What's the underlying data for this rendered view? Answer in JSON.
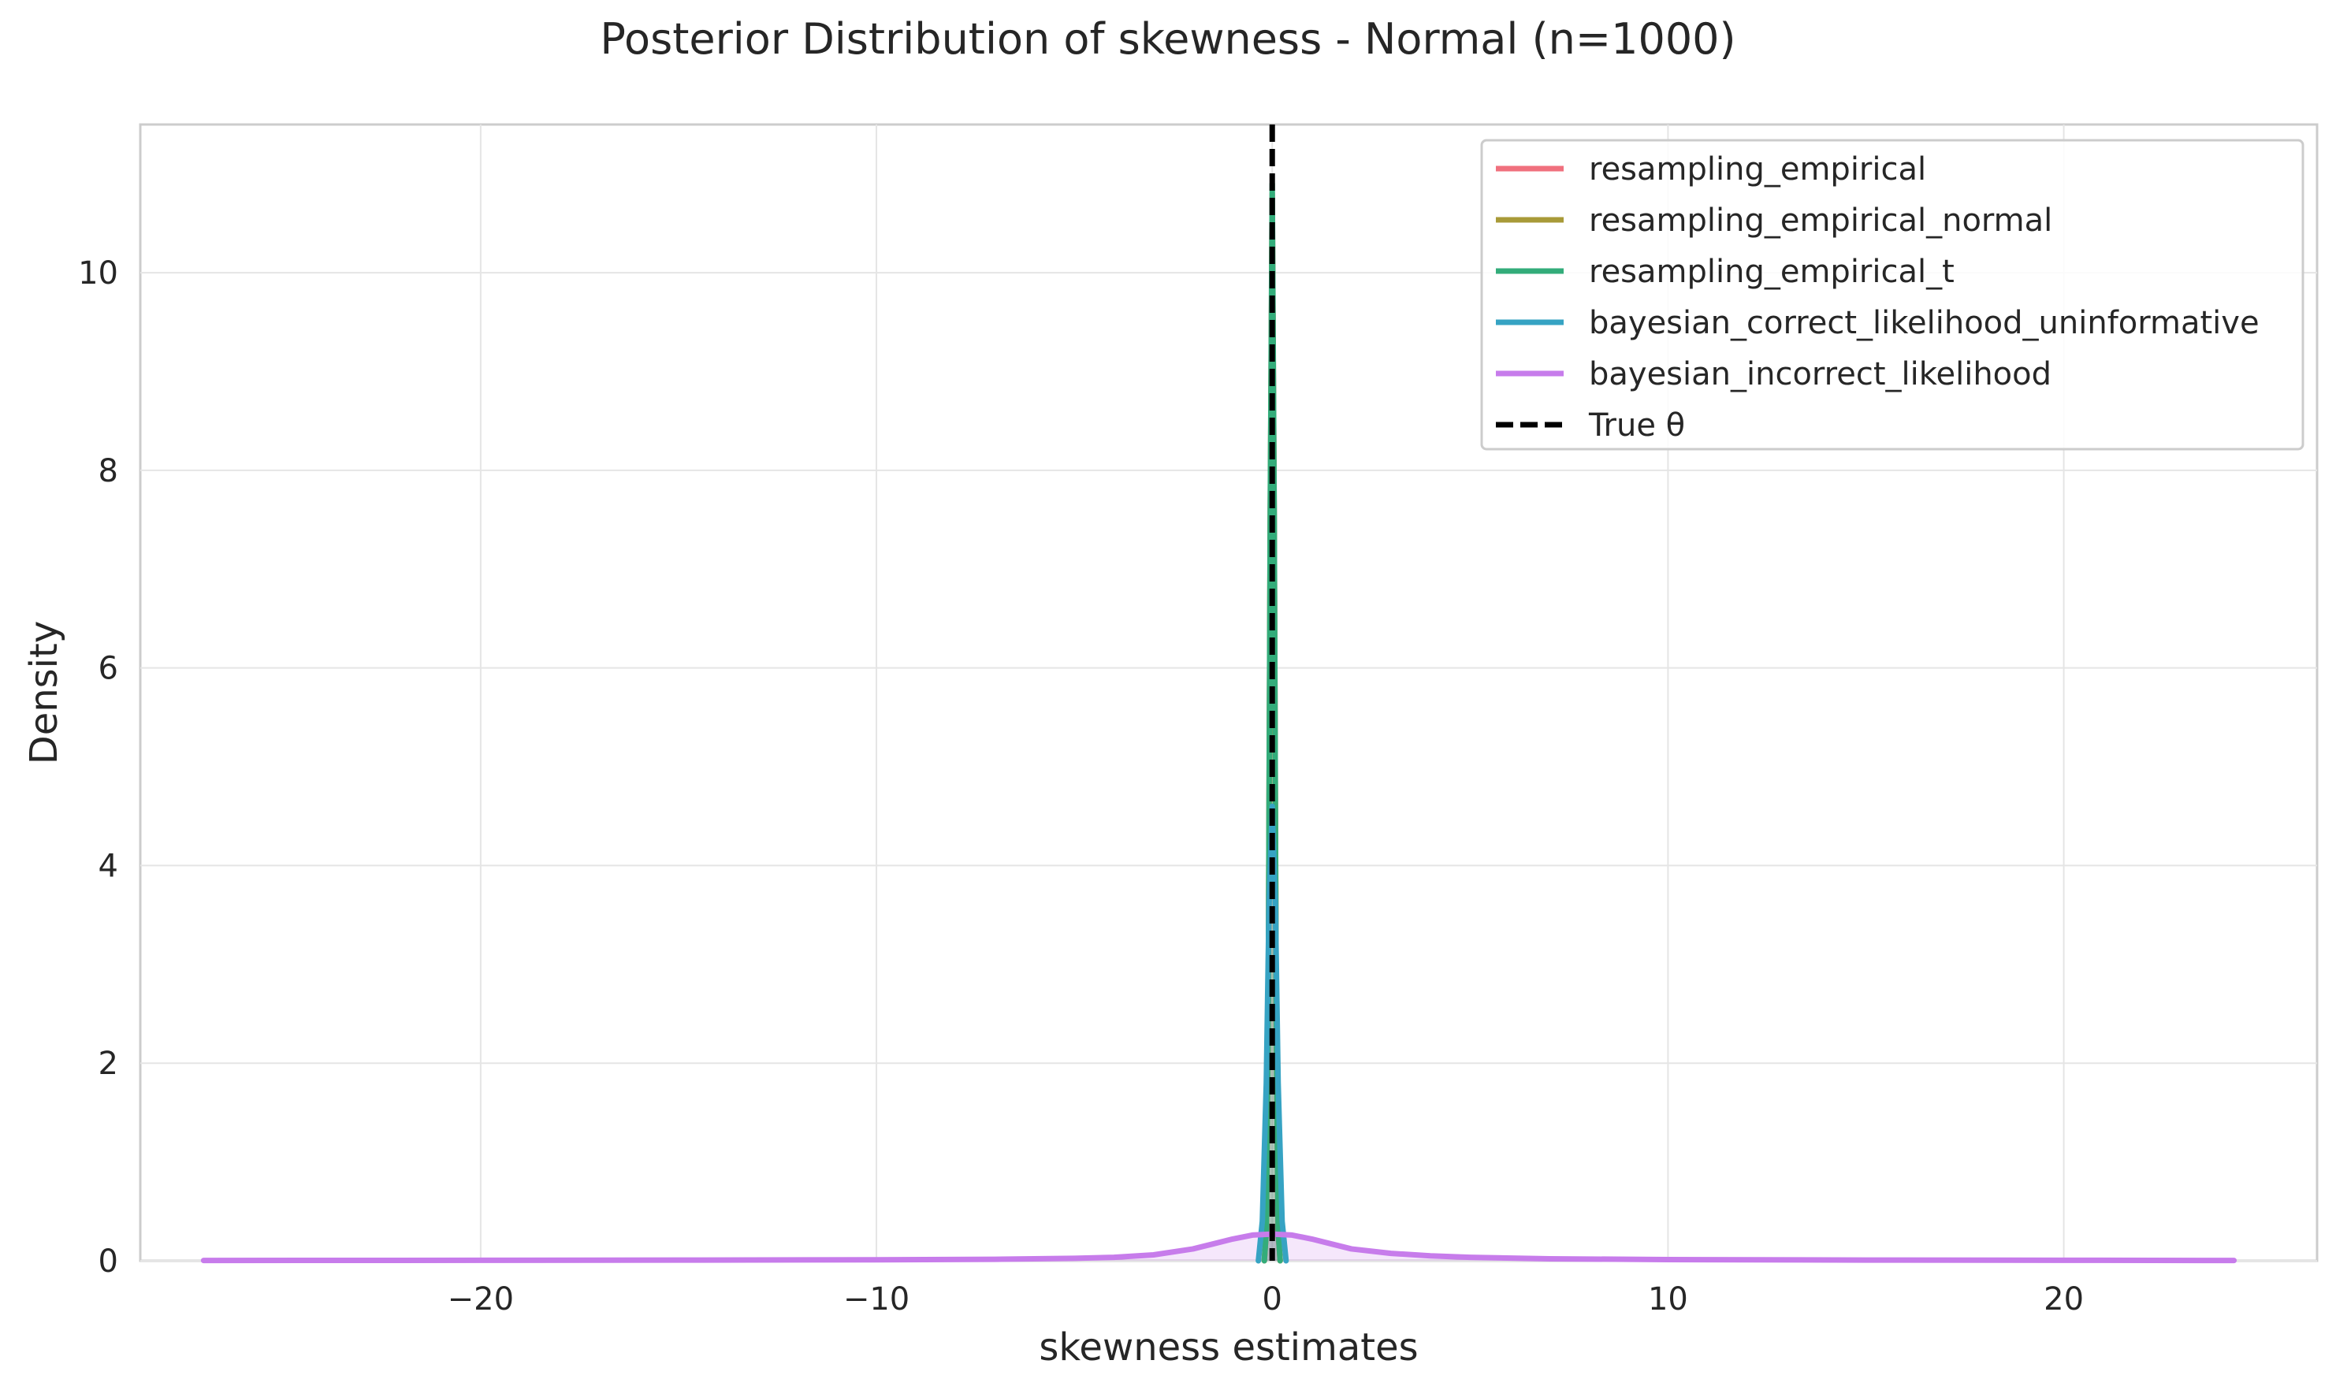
{
  "chart_data": {
    "type": "line",
    "title": "Posterior Distribution of skewness - Normal (n=1000)",
    "xlabel": "skewness estimates",
    "ylabel": "Density",
    "xlim": [
      -28.6,
      26.4
    ],
    "ylim": [
      0,
      11.5
    ],
    "xticks": [
      -20,
      -10,
      0,
      10,
      20
    ],
    "xtick_labels": [
      "−20",
      "−10",
      "0",
      "10",
      "20"
    ],
    "yticks": [
      0,
      2,
      4,
      6,
      8,
      10
    ],
    "ytick_labels": [
      "0",
      "2",
      "4",
      "6",
      "8",
      "10"
    ],
    "grid": true,
    "legend_position": "top-right",
    "true_theta": 0.0,
    "series": [
      {
        "name": "resampling_empirical",
        "color": "#f0707e",
        "x": [
          -0.2,
          -0.15,
          -0.1,
          -0.05,
          0.0,
          0.05,
          0.1,
          0.15,
          0.2
        ],
        "y": [
          0,
          0.3,
          2.5,
          7.5,
          10.8,
          7.5,
          2.5,
          0.3,
          0
        ]
      },
      {
        "name": "resampling_empirical_normal",
        "color": "#a89a38",
        "x": [
          -0.2,
          -0.15,
          -0.1,
          -0.05,
          0.0,
          0.05,
          0.1,
          0.15,
          0.2
        ],
        "y": [
          0,
          0.3,
          2.5,
          7.4,
          10.7,
          7.4,
          2.5,
          0.3,
          0
        ]
      },
      {
        "name": "resampling_empirical_t",
        "color": "#33ac7a",
        "x": [
          -0.2,
          -0.15,
          -0.1,
          -0.05,
          0.0,
          0.05,
          0.1,
          0.15,
          0.2
        ],
        "y": [
          0,
          0.3,
          2.6,
          7.6,
          10.9,
          7.6,
          2.6,
          0.3,
          0
        ]
      },
      {
        "name": "bayesian_correct_likelihood_uninformative",
        "color": "#36a3c3",
        "x": [
          -0.35,
          -0.25,
          -0.15,
          -0.08,
          0.0,
          0.08,
          0.15,
          0.25,
          0.35
        ],
        "y": [
          0,
          0.4,
          1.8,
          3.6,
          4.6,
          3.6,
          1.8,
          0.4,
          0
        ]
      },
      {
        "name": "bayesian_incorrect_likelihood",
        "color": "#c77ceb",
        "x": [
          -27,
          -20,
          -15,
          -10,
          -7,
          -5,
          -4,
          -3,
          -2,
          -1.5,
          -1,
          -0.5,
          0,
          0.5,
          1,
          1.5,
          2,
          3,
          4,
          5,
          7,
          10,
          15,
          20,
          24.3
        ],
        "y": [
          0.003,
          0.005,
          0.007,
          0.01,
          0.015,
          0.025,
          0.035,
          0.06,
          0.12,
          0.17,
          0.22,
          0.26,
          0.27,
          0.26,
          0.22,
          0.17,
          0.12,
          0.075,
          0.05,
          0.035,
          0.02,
          0.012,
          0.007,
          0.005,
          0.003
        ]
      }
    ],
    "legend": [
      {
        "label": "resampling_empirical",
        "color": "#f0707e",
        "style": "solid"
      },
      {
        "label": "resampling_empirical_normal",
        "color": "#a89a38",
        "style": "solid"
      },
      {
        "label": "resampling_empirical_t",
        "color": "#33ac7a",
        "style": "solid"
      },
      {
        "label": "bayesian_correct_likelihood_uninformative",
        "color": "#36a3c3",
        "style": "solid"
      },
      {
        "label": "bayesian_incorrect_likelihood",
        "color": "#c77ceb",
        "style": "solid"
      },
      {
        "label": "True θ",
        "color": "#000000",
        "style": "dashed"
      }
    ]
  }
}
